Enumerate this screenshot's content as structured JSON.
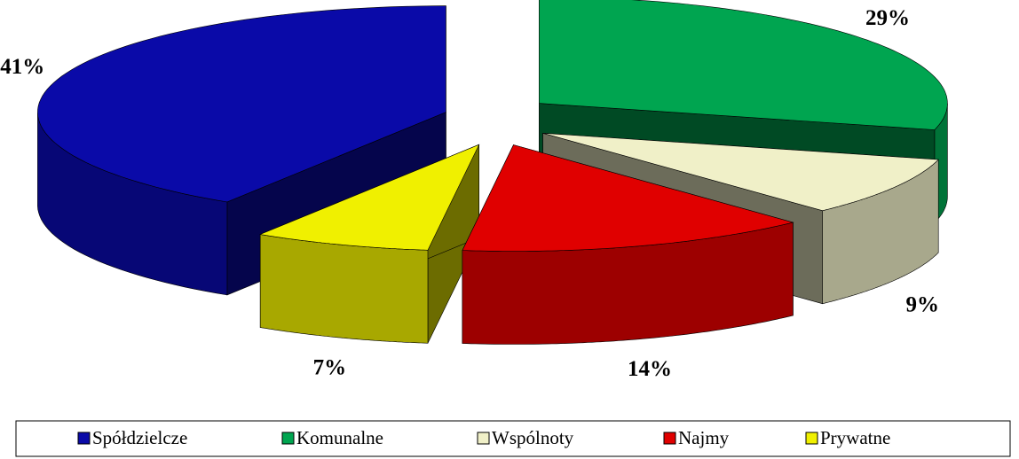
{
  "chart_data": {
    "type": "pie",
    "categories": [
      "Spółdzielcze",
      "Komunalne",
      "Wspólnoty",
      "Najmy",
      "Prywatne"
    ],
    "values": [
      41,
      29,
      9,
      14,
      7
    ],
    "value_labels": [
      "41%",
      "29%",
      "9%",
      "14%",
      "7%"
    ],
    "colors": [
      "#0a0aa8",
      "#00a550",
      "#f0f0c8",
      "#e00000",
      "#f0f000"
    ],
    "legend": "bottom"
  }
}
